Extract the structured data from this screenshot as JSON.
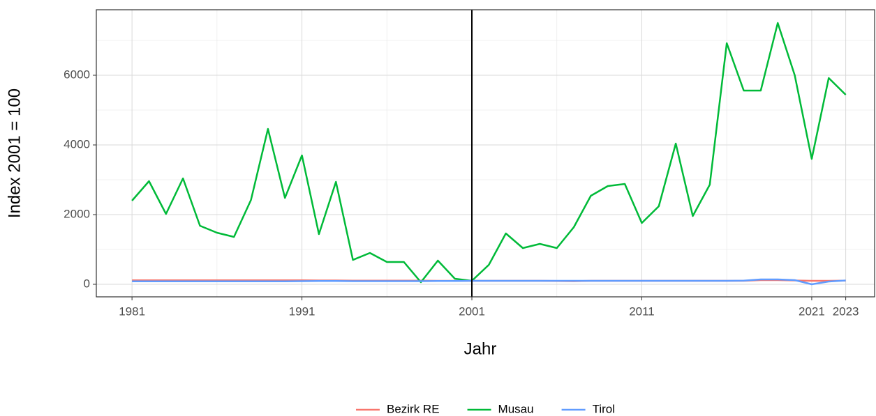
{
  "chart_data": {
    "type": "line",
    "x_label": "Jahr",
    "y_label": "Index 2001 = 100",
    "x": [
      1981,
      1982,
      1983,
      1984,
      1985,
      1986,
      1987,
      1988,
      1989,
      1990,
      1991,
      1992,
      1993,
      1994,
      1995,
      1996,
      1997,
      1998,
      1999,
      2000,
      2001,
      2002,
      2003,
      2004,
      2005,
      2006,
      2007,
      2008,
      2009,
      2010,
      2011,
      2012,
      2013,
      2014,
      2015,
      2016,
      2017,
      2018,
      2019,
      2020,
      2021,
      2022,
      2023
    ],
    "series": [
      {
        "name": "Bezirk RE",
        "color": "#f8766d",
        "values": [
          115,
          115,
          115,
          115,
          115,
          115,
          115,
          115,
          115,
          115,
          115,
          110,
          110,
          105,
          105,
          105,
          105,
          105,
          100,
          100,
          100,
          100,
          100,
          100,
          100,
          95,
          90,
          100,
          100,
          100,
          100,
          100,
          100,
          100,
          100,
          100,
          100,
          120,
          120,
          110,
          100,
          100,
          105
        ]
      },
      {
        "name": "Musau",
        "color": "#00ba38",
        "values": [
          2400,
          2960,
          2020,
          3040,
          1680,
          1480,
          1360,
          2420,
          4460,
          2480,
          3700,
          1440,
          2940,
          700,
          900,
          640,
          640,
          60,
          680,
          160,
          100,
          560,
          1460,
          1040,
          1160,
          1040,
          1640,
          2540,
          2820,
          2880,
          1760,
          2240,
          4040,
          1960,
          2860,
          6920,
          5560,
          5560,
          7500,
          6000,
          3600,
          5920,
          5440
        ]
      },
      {
        "name": "Tirol",
        "color": "#619cff",
        "values": [
          85,
          85,
          85,
          85,
          85,
          85,
          85,
          85,
          85,
          85,
          90,
          95,
          95,
          90,
          90,
          90,
          90,
          90,
          95,
          95,
          100,
          100,
          100,
          100,
          100,
          100,
          100,
          100,
          100,
          100,
          100,
          100,
          100,
          100,
          100,
          100,
          105,
          140,
          140,
          120,
          0,
          80,
          110
        ]
      }
    ],
    "xlim": [
      1978.9,
      2024.7
    ],
    "ylim": [
      -360,
      7880
    ],
    "xticks": [
      1981,
      1991,
      2001,
      2011,
      2021,
      2023
    ],
    "x_minor_ticks": [
      1986,
      1996,
      2006,
      2016
    ],
    "yticks": [
      0,
      2000,
      4000,
      6000
    ],
    "y_minor_ticks": [
      1000,
      3000,
      5000,
      7000
    ],
    "vline": 2001,
    "vline_color": "#000000",
    "grid": true,
    "legend": "bottom"
  }
}
